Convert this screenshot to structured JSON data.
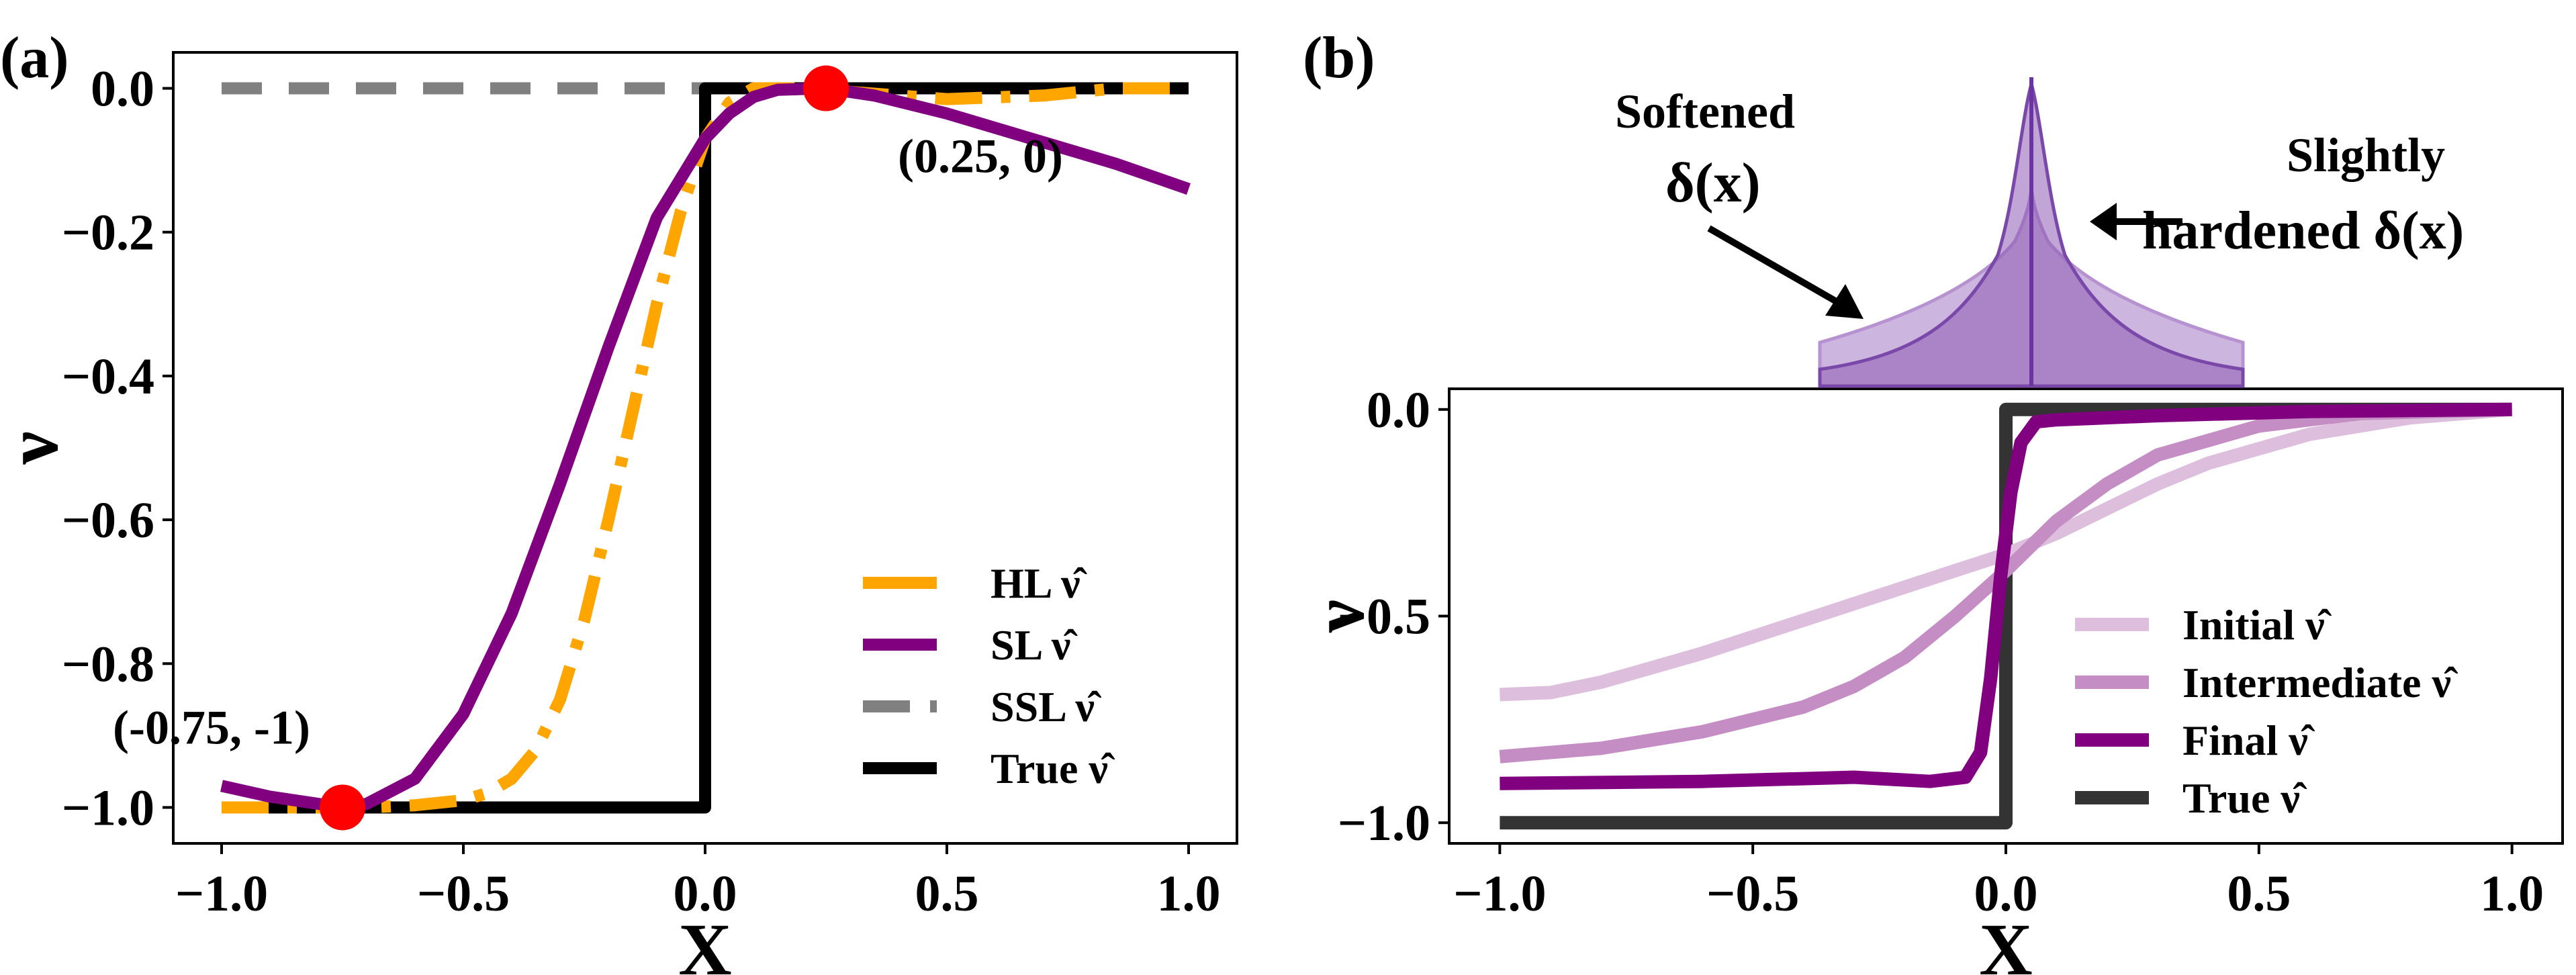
{
  "chart_data": [
    {
      "panel": "(a)",
      "type": "line",
      "xlabel": "X",
      "ylabel": "ν",
      "xlim": [
        -1.1,
        1.1
      ],
      "ylim": [
        -1.05,
        0.05
      ],
      "xticks": [
        "−1.0",
        "−0.5",
        "0.0",
        "0.5",
        "1.0"
      ],
      "xtick_values": [
        -1.0,
        -0.5,
        0.0,
        0.5,
        1.0
      ],
      "yticks": [
        "0.0",
        "−0.2",
        "−0.4",
        "−0.6",
        "−0.8",
        "−1.0"
      ],
      "ytick_values": [
        0.0,
        -0.2,
        -0.4,
        -0.6,
        -0.8,
        -1.0
      ],
      "legend_position": "lower-right",
      "series": [
        {
          "name": "HL ν̂",
          "color": "#FFA500",
          "style": "dashdot",
          "points": [
            [
              -1.0,
              -1.0
            ],
            [
              -0.8,
              -1.0
            ],
            [
              -0.7,
              -1.0
            ],
            [
              -0.6,
              -0.997
            ],
            [
              -0.5,
              -0.99
            ],
            [
              -0.45,
              -0.98
            ],
            [
              -0.4,
              -0.96
            ],
            [
              -0.35,
              -0.92
            ],
            [
              -0.3,
              -0.85
            ],
            [
              -0.25,
              -0.74
            ],
            [
              -0.2,
              -0.6
            ],
            [
              -0.15,
              -0.45
            ],
            [
              -0.1,
              -0.3
            ],
            [
              -0.05,
              -0.17
            ],
            [
              0.0,
              -0.07
            ],
            [
              0.05,
              -0.02
            ],
            [
              0.1,
              0.0
            ],
            [
              0.2,
              0.0
            ],
            [
              0.3,
              -0.005
            ],
            [
              0.5,
              -0.015
            ],
            [
              0.7,
              -0.01
            ],
            [
              0.85,
              0.0
            ],
            [
              1.0,
              0.0
            ]
          ]
        },
        {
          "name": "SL ν̂",
          "color": "#800080",
          "style": "solid",
          "points": [
            [
              -1.0,
              -0.97
            ],
            [
              -0.9,
              -0.985
            ],
            [
              -0.8,
              -0.995
            ],
            [
              -0.75,
              -1.0
            ],
            [
              -0.7,
              -0.995
            ],
            [
              -0.6,
              -0.96
            ],
            [
              -0.5,
              -0.87
            ],
            [
              -0.4,
              -0.73
            ],
            [
              -0.3,
              -0.55
            ],
            [
              -0.2,
              -0.36
            ],
            [
              -0.1,
              -0.18
            ],
            [
              0.0,
              -0.07
            ],
            [
              0.05,
              -0.035
            ],
            [
              0.1,
              -0.012
            ],
            [
              0.15,
              -0.002
            ],
            [
              0.25,
              0.0
            ],
            [
              0.35,
              -0.01
            ],
            [
              0.5,
              -0.035
            ],
            [
              0.7,
              -0.075
            ],
            [
              0.85,
              -0.105
            ],
            [
              1.0,
              -0.14
            ]
          ]
        },
        {
          "name": "SSL ν̂",
          "color": "#808080",
          "style": "dashed",
          "points": [
            [
              -1.0,
              0.0
            ],
            [
              1.0,
              0.0
            ]
          ]
        },
        {
          "name": "True ν̂",
          "color": "#000000",
          "style": "solid",
          "points": [
            [
              -1.0,
              -1.0
            ],
            [
              0.0,
              -1.0
            ],
            [
              0.0,
              0.0
            ],
            [
              1.0,
              0.0
            ]
          ]
        }
      ],
      "markers": [
        {
          "x": -0.75,
          "y": -1.0,
          "color": "#FF0000",
          "label": "(-0.75, -1)"
        },
        {
          "x": 0.25,
          "y": 0.0,
          "color": "#FF0000",
          "label": "(0.25, 0)"
        }
      ]
    },
    {
      "panel": "(b)",
      "type": "line",
      "xlabel": "X",
      "ylabel": "ν",
      "xlim": [
        -1.1,
        1.1
      ],
      "ylim": [
        -1.05,
        0.05
      ],
      "xticks": [
        "−1.0",
        "−0.5",
        "0.0",
        "0.5",
        "1.0"
      ],
      "xtick_values": [
        -1.0,
        -0.5,
        0.0,
        0.5,
        1.0
      ],
      "yticks": [
        "0.0",
        "−0.5",
        "−1.0"
      ],
      "ytick_values": [
        0.0,
        -0.5,
        -1.0
      ],
      "legend_position": "lower-right",
      "series": [
        {
          "name": "Initial ν̂",
          "color": "#DDBFDD",
          "style": "solid",
          "points": [
            [
              -1.0,
              -0.69
            ],
            [
              -0.9,
              -0.685
            ],
            [
              -0.8,
              -0.66
            ],
            [
              -0.6,
              -0.59
            ],
            [
              -0.4,
              -0.51
            ],
            [
              -0.2,
              -0.43
            ],
            [
              0.0,
              -0.35
            ],
            [
              0.1,
              -0.3
            ],
            [
              0.2,
              -0.24
            ],
            [
              0.3,
              -0.18
            ],
            [
              0.4,
              -0.13
            ],
            [
              0.6,
              -0.06
            ],
            [
              0.8,
              -0.02
            ],
            [
              1.0,
              0.0
            ]
          ]
        },
        {
          "name": "Intermediate ν̂",
          "color": "#C48EC4",
          "style": "solid",
          "points": [
            [
              -1.0,
              -0.84
            ],
            [
              -0.8,
              -0.82
            ],
            [
              -0.6,
              -0.78
            ],
            [
              -0.4,
              -0.72
            ],
            [
              -0.3,
              -0.67
            ],
            [
              -0.2,
              -0.6
            ],
            [
              -0.1,
              -0.5
            ],
            [
              0.0,
              -0.39
            ],
            [
              0.05,
              -0.33
            ],
            [
              0.1,
              -0.27
            ],
            [
              0.2,
              -0.18
            ],
            [
              0.3,
              -0.11
            ],
            [
              0.5,
              -0.04
            ],
            [
              0.7,
              -0.01
            ],
            [
              1.0,
              0.0
            ]
          ]
        },
        {
          "name": "Final ν̂",
          "color": "#800080",
          "style": "solid",
          "points": [
            [
              -1.0,
              -0.905
            ],
            [
              -0.6,
              -0.9
            ],
            [
              -0.3,
              -0.89
            ],
            [
              -0.15,
              -0.9
            ],
            [
              -0.08,
              -0.89
            ],
            [
              -0.05,
              -0.83
            ],
            [
              -0.03,
              -0.65
            ],
            [
              -0.01,
              -0.4
            ],
            [
              0.0,
              -0.3
            ],
            [
              0.01,
              -0.2
            ],
            [
              0.03,
              -0.08
            ],
            [
              0.06,
              -0.03
            ],
            [
              0.1,
              -0.025
            ],
            [
              0.3,
              -0.015
            ],
            [
              0.6,
              -0.005
            ],
            [
              1.0,
              0.0
            ]
          ]
        },
        {
          "name": "True ν̂",
          "color": "#333333",
          "style": "solid",
          "points": [
            [
              -1.0,
              -1.0
            ],
            [
              0.0,
              -1.0
            ],
            [
              0.0,
              0.0
            ],
            [
              1.0,
              0.0
            ]
          ]
        }
      ],
      "inset": {
        "type": "area",
        "color": "#8E5BB5",
        "annotations": [
          "Softened",
          "δ(x)",
          "Slightly",
          "hardened δ(x)"
        ]
      }
    }
  ]
}
